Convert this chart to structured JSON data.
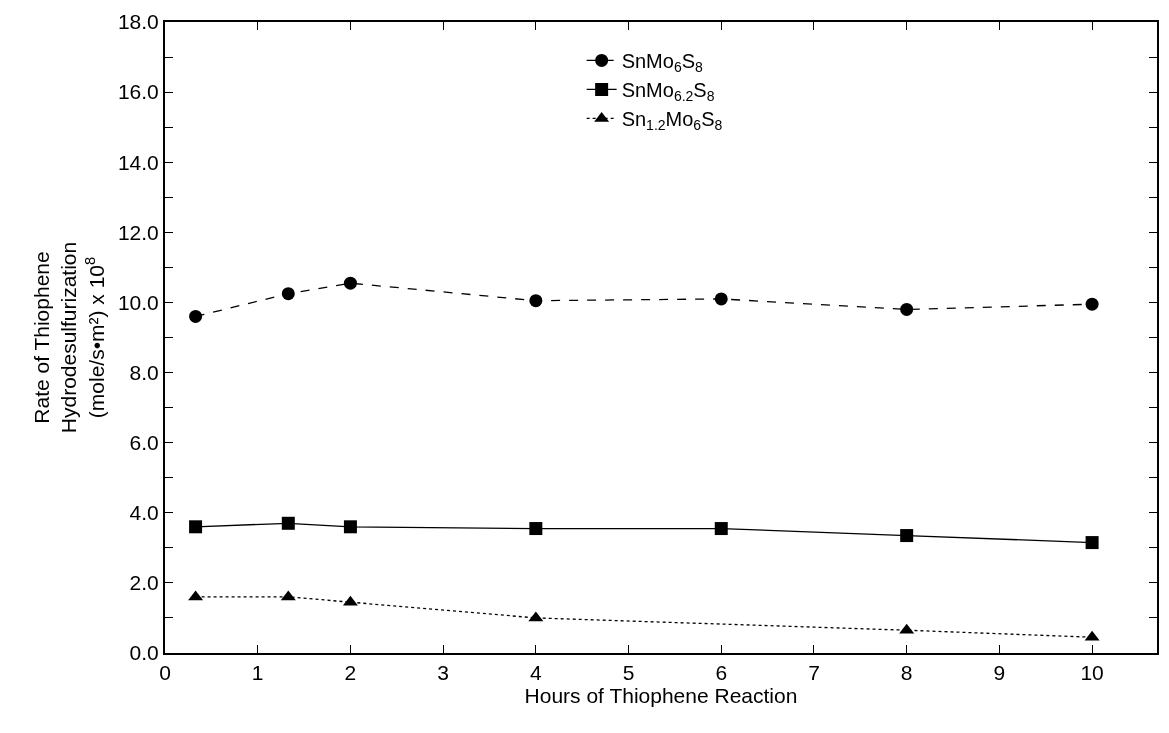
{
  "chart_data": {
    "type": "line",
    "xlabel": "Hours of Thiophene Reaction",
    "ylabel": "Rate of Thiophene\nHydrodesulfurization\n(mole/s•m²) x 10$^{8}$",
    "x": [
      0.33,
      1.33,
      2,
      4,
      6,
      8,
      10
    ],
    "series": [
      {
        "name": "SnMo$_{6}$S$_{8}$",
        "color": "#000000",
        "marker": "circle",
        "line_style": "dashed",
        "values": [
          9.6,
          10.25,
          10.55,
          10.05,
          10.1,
          9.8,
          9.95
        ]
      },
      {
        "name": "SnMo$_{6.2}$S$_{8}$",
        "color": "#000000",
        "marker": "square",
        "line_style": "solid",
        "values": [
          3.6,
          3.7,
          3.6,
          3.55,
          3.55,
          3.35,
          3.15
        ]
      },
      {
        "name": "Sn$_{1.2}$Mo$_{6}$S$_{8}$",
        "color": "#000000",
        "marker": "triangle",
        "line_style": "dotted",
        "x": [
          0.33,
          1.33,
          2,
          4,
          8,
          10
        ],
        "values": [
          1.6,
          1.6,
          1.45,
          1.0,
          0.65,
          0.45
        ]
      }
    ],
    "xlim": [
      0,
      10.7
    ],
    "xticks": [
      0,
      1,
      2,
      3,
      4,
      5,
      6,
      7,
      8,
      9,
      10
    ],
    "ylim": [
      0,
      18
    ],
    "yticks": [
      {
        "value": 0,
        "label": "0.0"
      },
      {
        "value": 1,
        "label": null
      },
      {
        "value": 2,
        "label": "2.0"
      },
      {
        "value": 3,
        "label": null
      },
      {
        "value": 4,
        "label": "4.0"
      },
      {
        "value": 5,
        "label": null
      },
      {
        "value": 6,
        "label": "6.0"
      },
      {
        "value": 7,
        "label": null
      },
      {
        "value": 8,
        "label": "8.0"
      },
      {
        "value": 9,
        "label": null
      },
      {
        "value": 10,
        "label": "10.0"
      },
      {
        "value": 11,
        "label": null
      },
      {
        "value": 12,
        "label": "12.0"
      },
      {
        "value": 13,
        "label": null
      },
      {
        "value": 14,
        "label": "14.0"
      },
      {
        "value": 15,
        "label": null
      },
      {
        "value": 16,
        "label": "16.0"
      },
      {
        "value": 17,
        "label": null
      },
      {
        "value": 18,
        "label": "18.0"
      }
    ],
    "legend": "top"
  }
}
